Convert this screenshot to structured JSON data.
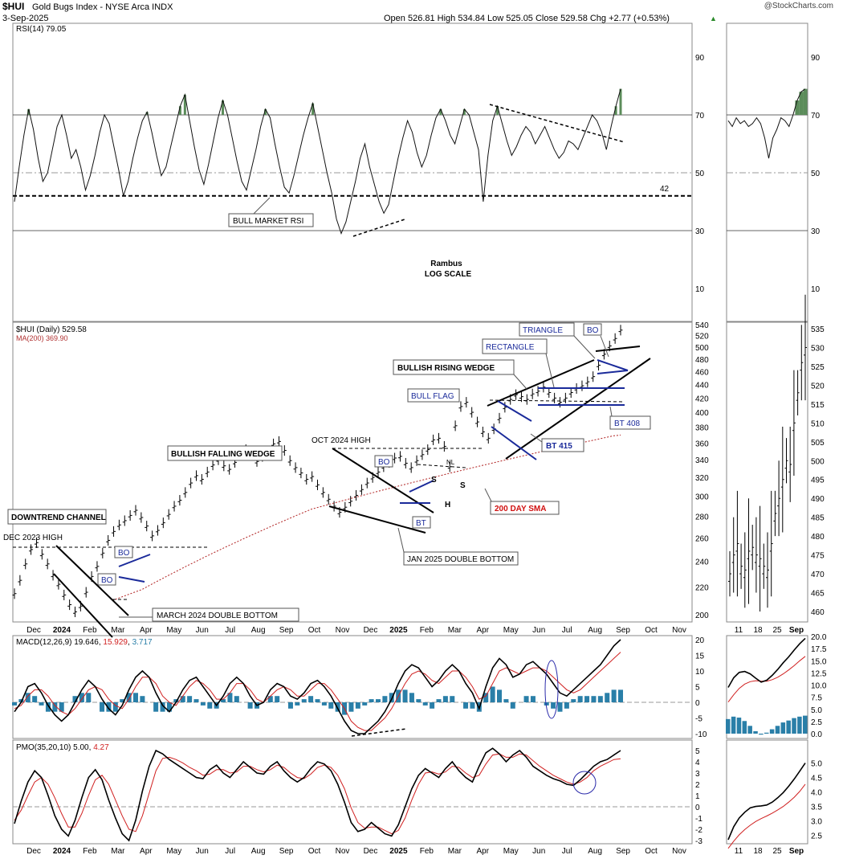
{
  "header": {
    "symbol": "$HUI",
    "name": "Gold Bugs Index - NYSE Arca INDX",
    "date": "3-Sep-2025",
    "ohlc": "Open 526.81  High 534.84  Low 525.05  Close 529.58  Chg +2.77 (+0.53%)",
    "ohlc_arrow": "▲",
    "watermark": "@StockCharts.com"
  },
  "chart_data": [
    {
      "type": "line",
      "panel": "rsi",
      "legend": "RSI(14) 79.05",
      "ylim": [
        0,
        100
      ],
      "ticks": [
        "90",
        "70",
        "50",
        "30",
        "10"
      ],
      "levels": [
        70,
        50,
        42,
        30
      ],
      "level_label": "42",
      "fill_above": 70,
      "annotations": [
        "BULL MARKET RSI",
        "Rambus",
        "LOG SCALE"
      ],
      "series": [
        {
          "values": [
            40,
            52,
            63,
            72,
            65,
            55,
            47,
            50,
            58,
            66,
            70,
            63,
            55,
            58,
            52,
            44,
            49,
            56,
            64,
            70,
            67,
            59,
            51,
            42,
            47,
            55,
            62,
            68,
            71,
            64,
            56,
            49,
            52,
            59,
            66,
            73,
            77,
            68,
            59,
            51,
            46,
            53,
            61,
            69,
            75,
            70,
            62,
            54,
            47,
            44,
            51,
            58,
            66,
            72,
            69,
            60,
            52,
            45,
            43,
            49,
            56,
            63,
            69,
            74,
            66,
            58,
            50,
            43,
            34,
            29,
            33,
            40,
            47,
            55,
            60,
            52,
            46,
            40,
            36,
            39,
            47,
            55,
            62,
            68,
            64,
            57,
            52,
            56,
            63,
            69,
            72,
            68,
            63,
            60,
            66,
            72,
            70,
            64,
            58,
            40,
            56,
            68,
            73,
            67,
            61,
            56,
            59,
            63,
            66,
            64,
            60,
            63,
            66,
            62,
            58,
            55,
            57,
            61,
            60,
            58,
            62,
            66,
            70,
            68,
            64,
            58,
            66,
            73,
            79
          ]
        }
      ]
    },
    {
      "type": "line",
      "panel": "price",
      "log_scale": true,
      "legend": "$HUI (Daily) 529.58",
      "ma_legend": "MA(200) 369.90",
      "ylim": [
        195,
        545
      ],
      "ticks": [
        "540",
        "520",
        "500",
        "480",
        "460",
        "440",
        "420",
        "400",
        "380",
        "360",
        "340",
        "320",
        "300",
        "280",
        "260",
        "240",
        "220",
        "200"
      ],
      "x_ticks": [
        "Dec",
        "2024",
        "Feb",
        "Mar",
        "Apr",
        "May",
        "Jun",
        "Jul",
        "Aug",
        "Sep",
        "Oct",
        "Nov",
        "Dec",
        "2025",
        "Feb",
        "Mar",
        "Apr",
        "May",
        "Jun",
        "Jul",
        "Aug",
        "Sep",
        "Oct",
        "Nov"
      ],
      "series": [
        {
          "values": [
            215,
            225,
            238,
            250,
            256,
            246,
            238,
            229,
            222,
            214,
            207,
            202,
            206,
            216,
            228,
            236,
            247,
            258,
            266,
            272,
            276,
            281,
            286,
            279,
            271,
            262,
            267,
            274,
            282,
            290,
            296,
            304,
            314,
            322,
            318,
            326,
            334,
            340,
            333,
            329,
            337,
            346,
            352,
            346,
            338,
            344,
            350,
            359,
            362,
            351,
            339,
            331,
            325,
            318,
            321,
            312,
            304,
            297,
            290,
            284,
            289,
            295,
            301,
            307,
            314,
            320,
            326,
            332,
            337,
            342,
            344,
            336,
            331,
            339,
            346,
            352,
            364,
            366,
            356,
            332,
            382,
            408,
            414,
            400,
            387,
            374,
            366,
            378,
            392,
            407,
            418,
            425,
            422,
            418,
            426,
            430,
            436,
            428,
            420,
            414,
            420,
            428,
            434,
            438,
            444,
            452,
            470,
            488,
            502,
            515,
            530
          ]
        },
        {
          "values": [
            210,
            212,
            214,
            216,
            218,
            221,
            224,
            227,
            230,
            233,
            236,
            239,
            242,
            245,
            248,
            251,
            254,
            257,
            260,
            263,
            266,
            269,
            272,
            275,
            278,
            281,
            284,
            287,
            289,
            291,
            293,
            295,
            297,
            299,
            301,
            303,
            305,
            307,
            309,
            311,
            313,
            315,
            317,
            319,
            321,
            323,
            325,
            327,
            329,
            331,
            333,
            335,
            337,
            339,
            341,
            343,
            345,
            347,
            349,
            351,
            353,
            355,
            357,
            359,
            361,
            363,
            365,
            367,
            369,
            370
          ]
        }
      ],
      "annotations": [
        "DEC 2023 HIGH",
        "DOWNTREND CHANNEL",
        "BO",
        "BO",
        "MARCH 2024 DOUBLE BOTTOM",
        "BULLISH FALLING WEDGE",
        "OCT 2024 HIGH",
        "BO",
        "BT",
        "NL",
        "S",
        "S",
        "H",
        "JAN 2025 DOUBLE BOTTOM",
        "200 DAY SMA",
        "BULL FLAG",
        "BULLISH RISING WEDGE",
        "RECTANGLE",
        "TRIANGLE",
        "BO",
        "BT 415",
        "BT 408"
      ]
    },
    {
      "type": "line",
      "panel": "macd",
      "legend_name": "MACD(12,26,9)",
      "legend_values": [
        "19.646",
        "15.929",
        "3.717"
      ],
      "ylim": [
        -12,
        22
      ],
      "ticks": [
        "20",
        "15",
        "10",
        "5",
        "0",
        "-5",
        "-10"
      ],
      "series": [
        {
          "name": "MACD",
          "values": [
            -3,
            0,
            5,
            6,
            3,
            -1,
            -4,
            -6,
            -4,
            0,
            4,
            7,
            5,
            1,
            -2,
            -4,
            -1,
            4,
            8,
            10,
            8,
            3,
            -1,
            -3,
            0,
            4,
            7,
            8,
            5,
            2,
            -1,
            2,
            6,
            8,
            6,
            2,
            -1,
            0,
            4,
            6,
            5,
            2,
            1,
            3,
            6,
            7,
            5,
            2,
            -2,
            -6,
            -9,
            -10,
            -10,
            -8,
            -6,
            -3,
            1,
            6,
            10,
            12,
            11,
            8,
            5,
            7,
            10,
            12,
            10,
            6,
            3,
            -2,
            5,
            11,
            14,
            12,
            8,
            9,
            12,
            13,
            11,
            9,
            6,
            3,
            2,
            4,
            6,
            8,
            10,
            12,
            15,
            18,
            20
          ]
        },
        {
          "name": "signal",
          "values": [
            -2,
            -1,
            2,
            4,
            4,
            2,
            -1,
            -3,
            -4,
            -2,
            1,
            4,
            5,
            4,
            1,
            -1,
            -2,
            1,
            5,
            8,
            8,
            6,
            2,
            0,
            -1,
            2,
            5,
            7,
            6,
            4,
            1,
            1,
            3,
            6,
            6,
            4,
            1,
            0,
            2,
            4,
            5,
            4,
            2,
            2,
            4,
            6,
            6,
            4,
            1,
            -2,
            -6,
            -8,
            -9,
            -9,
            -7,
            -5,
            -2,
            2,
            6,
            9,
            10,
            9,
            7,
            6,
            8,
            10,
            10,
            8,
            5,
            1,
            2,
            6,
            10,
            11,
            10,
            9,
            10,
            11,
            11,
            10,
            8,
            6,
            4,
            3,
            4,
            6,
            8,
            10,
            12,
            14,
            16
          ]
        },
        {
          "name": "histogram",
          "values": [
            -1,
            1,
            3,
            2,
            -1,
            -3,
            -3,
            -3,
            0,
            2,
            3,
            3,
            0,
            -3,
            -3,
            -3,
            1,
            3,
            3,
            2,
            0,
            -3,
            -3,
            -3,
            1,
            2,
            2,
            1,
            -1,
            -2,
            -2,
            1,
            3,
            2,
            0,
            -2,
            -2,
            0,
            2,
            2,
            0,
            -2,
            -1,
            1,
            2,
            1,
            -1,
            -2,
            -3,
            -4,
            -3,
            -2,
            -1,
            1,
            1,
            2,
            3,
            4,
            4,
            3,
            1,
            -1,
            -2,
            1,
            2,
            2,
            0,
            -2,
            -2,
            -3,
            3,
            5,
            4,
            1,
            -2,
            0,
            2,
            2,
            0,
            -1,
            -2,
            -3,
            -2,
            1,
            2,
            2,
            2,
            2,
            3,
            4,
            4
          ]
        }
      ]
    },
    {
      "type": "line",
      "panel": "pmo",
      "legend_name": "PMO(35,20,10)",
      "legend_values": [
        "5.00",
        "4.27"
      ],
      "ylim": [
        -3.3,
        5.6
      ],
      "ticks": [
        "5",
        "4",
        "3",
        "2",
        "1",
        "0",
        "-1",
        "-2",
        "-3"
      ],
      "series": [
        {
          "name": "PMO",
          "values": [
            -1.5,
            0.5,
            2.2,
            3.2,
            2.6,
            1,
            -0.8,
            -2,
            -2.6,
            -1.2,
            0.8,
            2.6,
            3.3,
            2.4,
            0.6,
            -1,
            -2.4,
            -3,
            -1.2,
            1.4,
            3.6,
            5,
            4.7,
            4.2,
            3.8,
            3.4,
            3,
            2.6,
            2.5,
            3.3,
            3.7,
            3,
            2.6,
            3.3,
            4,
            3.5,
            3,
            2.9,
            3.6,
            4,
            3.2,
            2.6,
            2.2,
            2.6,
            3.4,
            4,
            3.8,
            3.2,
            2,
            0.4,
            -1.4,
            -2.2,
            -2,
            -1.4,
            -1.9,
            -2.4,
            -2.6,
            -1.6,
            0,
            1.6,
            2.8,
            3.4,
            3,
            2.6,
            3.4,
            4,
            3.2,
            2.6,
            2.2,
            3.6,
            4.8,
            5.2,
            4.7,
            4,
            4.6,
            5,
            4.4,
            3.6,
            3.2,
            2.8,
            2.5,
            2.3,
            2,
            1.9,
            2.4,
            3,
            3.6,
            4,
            4.2,
            4.6,
            5
          ]
        },
        {
          "name": "signal",
          "values": [
            -1.2,
            -0.3,
            1,
            2.2,
            2.6,
            2,
            0.8,
            -0.6,
            -1.8,
            -1.8,
            -0.6,
            1,
            2.4,
            2.8,
            2,
            0.6,
            -0.8,
            -2,
            -2.2,
            -0.8,
            1.2,
            3.2,
            4.3,
            4.4,
            4.2,
            3.9,
            3.5,
            3.2,
            2.8,
            2.9,
            3.3,
            3.3,
            3,
            3.1,
            3.6,
            3.6,
            3.3,
            3.1,
            3.3,
            3.7,
            3.5,
            3,
            2.6,
            2.5,
            2.9,
            3.5,
            3.7,
            3.5,
            2.8,
            1.6,
            -0.1,
            -1.4,
            -1.9,
            -1.8,
            -1.8,
            -2.1,
            -2.4,
            -2.1,
            -1,
            0.6,
            2,
            3,
            3.1,
            2.9,
            3.1,
            3.6,
            3.5,
            3,
            2.6,
            2.8,
            3.8,
            4.6,
            4.7,
            4.4,
            4.4,
            4.7,
            4.6,
            4.1,
            3.6,
            3.2,
            2.8,
            2.5,
            2.2,
            2,
            2.2,
            2.6,
            3.2,
            3.6,
            3.9,
            4.2,
            4.27
          ]
        }
      ]
    },
    {
      "type": "line",
      "panel": "inset-rsi",
      "ticks": [
        "90",
        "70",
        "50",
        "30",
        "10"
      ],
      "series": [
        {
          "values": [
            68,
            66,
            69,
            67,
            68,
            66,
            67,
            69,
            67,
            62,
            55,
            62,
            65,
            69,
            68,
            66,
            70,
            75,
            78,
            79
          ]
        }
      ]
    },
    {
      "type": "bar",
      "panel": "inset-price",
      "ticks": [
        "535",
        "530",
        "525",
        "520",
        "515",
        "510",
        "505",
        "500",
        "495",
        "490",
        "485",
        "480",
        "475",
        "470",
        "465",
        "460"
      ],
      "x_ticks": [
        "11",
        "18",
        "25",
        "Sep"
      ],
      "values": [
        470,
        475,
        478,
        472,
        471,
        476,
        477,
        475,
        474,
        472,
        471,
        478,
        486,
        490,
        495,
        500,
        499,
        510,
        518,
        526,
        530
      ]
    },
    {
      "type": "line",
      "panel": "inset-macd",
      "ticks": [
        "20.0",
        "17.5",
        "15.0",
        "12.5",
        "10.0",
        "7.5",
        "5.0",
        "2.5",
        "0.0"
      ],
      "series": [
        {
          "name": "MACD",
          "values": [
            9.5,
            11.5,
            12.6,
            12.8,
            12.3,
            11.4,
            10.6,
            11,
            12,
            13.2,
            14.6,
            15.8,
            17.2,
            18.5,
            19.6
          ]
        },
        {
          "name": "signal",
          "values": [
            6.5,
            8,
            9.3,
            10.2,
            10.7,
            10.9,
            10.8,
            10.8,
            11.1,
            11.6,
            12.3,
            13.1,
            14,
            15,
            15.9
          ]
        },
        {
          "name": "histogram",
          "values": [
            3,
            3.5,
            3.3,
            2.6,
            1.6,
            0.5,
            -0.2,
            0.2,
            0.9,
            1.6,
            2.3,
            2.7,
            3.2,
            3.5,
            3.7
          ]
        }
      ]
    },
    {
      "type": "line",
      "panel": "inset-pmo",
      "ticks": [
        "5.0",
        "4.5",
        "4.0",
        "3.5",
        "3.0",
        "2.5"
      ],
      "series": [
        {
          "name": "PMO",
          "values": [
            2.35,
            2.8,
            3.1,
            3.3,
            3.45,
            3.5,
            3.52,
            3.55,
            3.65,
            3.8,
            3.98,
            4.2,
            4.45,
            4.72,
            5.0
          ]
        },
        {
          "name": "signal",
          "values": [
            2.05,
            2.3,
            2.52,
            2.7,
            2.85,
            2.98,
            3.08,
            3.17,
            3.27,
            3.38,
            3.5,
            3.65,
            3.82,
            4.02,
            4.27
          ]
        }
      ]
    }
  ]
}
